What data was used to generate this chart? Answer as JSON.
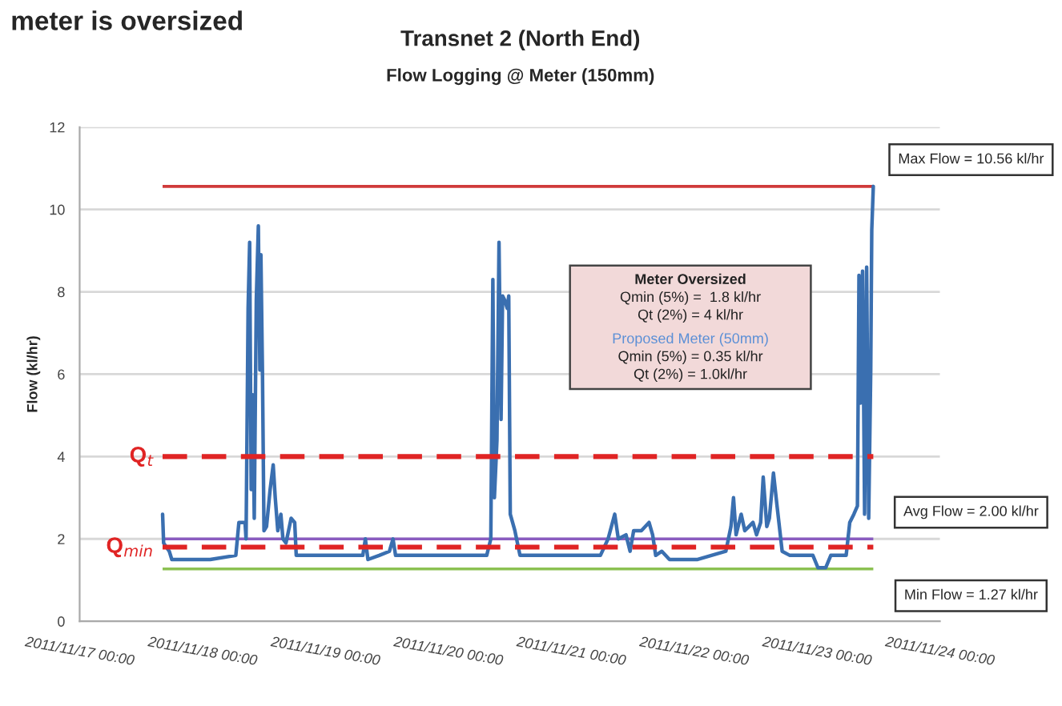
{
  "chart_data": {
    "type": "line",
    "title": "Transnet 2 (North End)",
    "subtitle": "Flow Logging @ Meter (150mm)",
    "ylabel": "Flow (kl/hr)",
    "annotations": [
      "meter is oversized",
      "Meter Oversized",
      "Qmin (5%) =  1.8 kl/hr",
      "Qt (2%) = 4 kl/hr",
      "Proposed Meter (50mm)",
      "Qmin (5%) = 0.35 kl/hr",
      "Qt (2%) = 1.0kl/hr"
    ],
    "xlim": [
      "2011-11-17",
      "2011-11-24"
    ],
    "xticks": [
      {
        "value": "2011-11-17",
        "label": "2011/11/17 00:00"
      },
      {
        "value": "2011-11-18",
        "label": "2011/11/18 00:00"
      },
      {
        "value": "2011-11-19",
        "label": "2011/11/19 00:00"
      },
      {
        "value": "2011-11-20",
        "label": "2011/11/20 00:00"
      },
      {
        "value": "2011-11-21",
        "label": "2011/11/21 00:00"
      },
      {
        "value": "2011-11-22",
        "label": "2011/11/22 00:00"
      },
      {
        "value": "2011-11-23",
        "label": "2011/11/23 00:00"
      },
      {
        "value": "2011-11-24",
        "label": "2011/11/24 00:00"
      }
    ],
    "ylim": [
      0,
      12
    ],
    "yticks": [
      0,
      2,
      4,
      6,
      8,
      10,
      12
    ],
    "grid": "y",
    "marker": "none",
    "line_style": "solid",
    "ref_lines": [
      {
        "axis": "y",
        "value": 10.56,
        "label": "Max Flow = 10.56 kl/hr",
        "color": "#d03a3a",
        "line_style": "solid"
      },
      {
        "axis": "y",
        "value": 4,
        "label": "Q$_{t}$",
        "color": "#e02424",
        "line_style": "dashed"
      },
      {
        "axis": "y",
        "value": 2.0,
        "label": "Avg Flow = 2.00 kl/hr",
        "color": "#8a5cc0",
        "line_style": "solid"
      },
      {
        "axis": "y",
        "value": 1.8,
        "label": "Q$_{min}$",
        "color": "#e02424",
        "line_style": "dashed"
      },
      {
        "axis": "y",
        "value": 1.27,
        "label": "Min Flow = 1.27 kl/hr",
        "color": "#8cc152",
        "line_style": "solid"
      }
    ],
    "series": [
      {
        "color": "#3a6fb0",
        "x": [
          "2011-11-17T16:12",
          "2011-11-17T16:24",
          "2011-11-17T17:30",
          "2011-11-17T18:00",
          "2011-11-17T20:30",
          "2011-11-18T01:30",
          "2011-11-18T06:30",
          "2011-11-18T07:06",
          "2011-11-18T08:18",
          "2011-11-18T08:30",
          "2011-11-18T08:54",
          "2011-11-18T09:12",
          "2011-11-18T09:30",
          "2011-11-18T09:48",
          "2011-11-18T10:06",
          "2011-11-18T10:30",
          "2011-11-18T10:54",
          "2011-11-18T11:12",
          "2011-11-18T11:24",
          "2011-11-18T11:42",
          "2011-11-18T12:00",
          "2011-11-18T12:30",
          "2011-11-18T13:12",
          "2011-11-18T13:48",
          "2011-11-18T14:12",
          "2011-11-18T14:42",
          "2011-11-18T15:18",
          "2011-11-18T15:42",
          "2011-11-18T16:18",
          "2011-11-18T17:18",
          "2011-11-18T18:00",
          "2011-11-18T18:18",
          "2011-11-18T23:30",
          "2011-11-19T05:30",
          "2011-11-19T07:18",
          "2011-11-19T07:48",
          "2011-11-19T08:18",
          "2011-11-19T10:30",
          "2011-11-19T12:30",
          "2011-11-19T13:12",
          "2011-11-19T13:42",
          "2011-11-19T19:30",
          "2011-11-20T02:30",
          "2011-11-20T07:30",
          "2011-11-20T08:18",
          "2011-11-20T08:42",
          "2011-11-20T09:00",
          "2011-11-20T09:30",
          "2011-11-20T09:54",
          "2011-11-20T10:18",
          "2011-11-20T10:36",
          "2011-11-20T11:00",
          "2011-11-20T11:30",
          "2011-11-20T11:48",
          "2011-11-20T12:06",
          "2011-11-20T13:00",
          "2011-11-20T14:00",
          "2011-11-20T14:42",
          "2011-11-21T00:42",
          "2011-11-21T05:42",
          "2011-11-21T07:12",
          "2011-11-21T08:30",
          "2011-11-21T09:12",
          "2011-11-21T10:42",
          "2011-11-21T11:30",
          "2011-11-21T12:12",
          "2011-11-21T13:42",
          "2011-11-21T15:12",
          "2011-11-21T15:54",
          "2011-11-21T16:30",
          "2011-11-21T17:42",
          "2011-11-21T19:12",
          "2011-11-22T00:42",
          "2011-11-22T06:12",
          "2011-11-22T07:12",
          "2011-11-22T07:42",
          "2011-11-22T08:12",
          "2011-11-22T09:12",
          "2011-11-22T09:54",
          "2011-11-22T10:42",
          "2011-11-22T11:30",
          "2011-11-22T12:12",
          "2011-11-22T13:00",
          "2011-11-22T13:30",
          "2011-11-22T14:12",
          "2011-11-22T14:42",
          "2011-11-22T15:30",
          "2011-11-22T16:12",
          "2011-11-22T17:12",
          "2011-11-22T18:42",
          "2011-11-22T23:12",
          "2011-11-23T00:12",
          "2011-11-23T01:42",
          "2011-11-23T02:42",
          "2011-11-23T05:42",
          "2011-11-23T06:24",
          "2011-11-23T07:12",
          "2011-11-23T07:54",
          "2011-11-23T08:12",
          "2011-11-23T08:30",
          "2011-11-23T08:54",
          "2011-11-23T09:18",
          "2011-11-23T09:42",
          "2011-11-23T10:06",
          "2011-11-23T10:30",
          "2011-11-23T10:42",
          "2011-11-23T11:00"
        ],
        "values": [
          2.6,
          1.9,
          1.7,
          1.5,
          1.5,
          1.5,
          1.6,
          2.4,
          2.4,
          2.0,
          7.6,
          9.2,
          3.2,
          5.5,
          2.5,
          7.8,
          9.6,
          6.1,
          8.9,
          6.1,
          2.2,
          2.3,
          3.2,
          3.8,
          3.0,
          2.2,
          2.6,
          2.0,
          1.9,
          2.5,
          2.4,
          1.6,
          1.6,
          1.6,
          1.6,
          2.0,
          1.5,
          1.6,
          1.7,
          2.0,
          1.6,
          1.6,
          1.6,
          1.6,
          2.0,
          8.3,
          3.0,
          4.4,
          9.2,
          4.9,
          7.9,
          7.8,
          7.6,
          7.9,
          2.6,
          2.2,
          1.6,
          1.6,
          1.6,
          1.6,
          2.0,
          2.6,
          2.0,
          2.1,
          1.7,
          2.2,
          2.2,
          2.4,
          2.1,
          1.6,
          1.7,
          1.5,
          1.5,
          1.7,
          2.3,
          3.0,
          2.1,
          2.6,
          2.2,
          2.3,
          2.4,
          2.1,
          2.4,
          3.5,
          2.3,
          2.5,
          3.6,
          2.8,
          1.7,
          1.6,
          1.6,
          1.3,
          1.3,
          1.6,
          1.6,
          2.4,
          2.6,
          2.8,
          8.4,
          5.3,
          8.5,
          2.6,
          8.6,
          2.5,
          6.1,
          9.5,
          10.56
        ]
      }
    ]
  }
}
